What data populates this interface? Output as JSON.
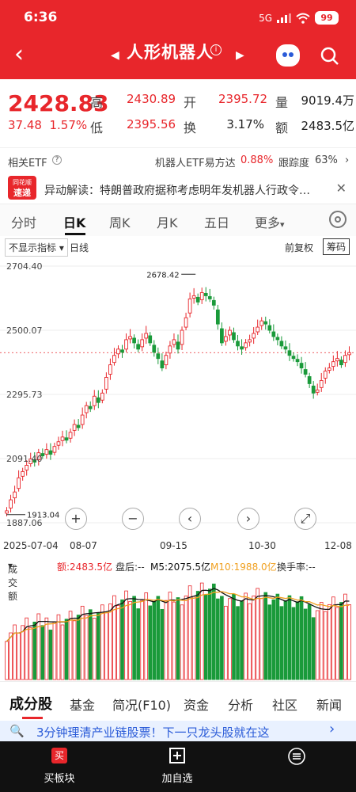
{
  "status": {
    "time": "6:36",
    "net": "5G",
    "battery": "99"
  },
  "title": {
    "name": "人形机器人"
  },
  "quote": {
    "price": "2428.83",
    "change": "37.48",
    "change_pct": "1.57%",
    "high_label": "高",
    "high": "2430.89",
    "open_label": "开",
    "open": "2395.72",
    "vol_label": "量",
    "vol": "9019.4万",
    "low_label": "低",
    "low": "2395.56",
    "turn_label": "换",
    "turn": "3.17%",
    "amt_label": "额",
    "amt": "2483.5亿"
  },
  "etf": {
    "label": "相关ETF",
    "product": "机器人ETF易方达",
    "product_chg": "0.88%",
    "track_label": "跟踪度",
    "track": "63%"
  },
  "news": {
    "logo_top": "同花顺",
    "logo_bottom": "速递",
    "text": "异动解读：特朗普政府据称考虑明年发机器人行政令…"
  },
  "tabs": {
    "t1": "分时",
    "t2": "日K",
    "t3": "周K",
    "t4": "月K",
    "t5": "五日",
    "t6": "更多"
  },
  "chart_bar": {
    "indicator": "不显示指标",
    "line": "日线",
    "adjust": "前复权",
    "chip": "筹码"
  },
  "chart_data": {
    "type": "candlestick",
    "y_ticks": [
      "2704.40",
      "2500.07",
      "2295.73",
      "2091.40",
      "1887.06"
    ],
    "max_label": "2678.42",
    "min_label": "1913.04",
    "dates": [
      "2025-07-04",
      "08-07",
      "09-15",
      "10-30",
      "12-08"
    ],
    "ylim": [
      1887.06,
      2704.4
    ],
    "last_close": 2428.83,
    "closes": [
      1925,
      1960,
      1985,
      2030,
      2050,
      2070,
      2090,
      2080,
      2110,
      2100,
      2120,
      2105,
      2130,
      2145,
      2160,
      2150,
      2175,
      2200,
      2190,
      2230,
      2260,
      2250,
      2290,
      2270,
      2300,
      2350,
      2390,
      2420,
      2440,
      2430,
      2470,
      2480,
      2460,
      2440,
      2470,
      2490,
      2460,
      2430,
      2410,
      2380,
      2420,
      2450,
      2470,
      2440,
      2500,
      2540,
      2600,
      2610,
      2590,
      2620,
      2610,
      2600,
      2580,
      2520,
      2460,
      2480,
      2500,
      2470,
      2450,
      2440,
      2460,
      2470,
      2490,
      2510,
      2530,
      2520,
      2500,
      2480,
      2470,
      2450,
      2440,
      2420,
      2410,
      2400,
      2380,
      2360,
      2330,
      2300,
      2310,
      2340,
      2370,
      2380,
      2400,
      2410,
      2390,
      2420,
      2428.83
    ]
  },
  "volume": {
    "label": "成交额",
    "amt": "额:2483.5亿",
    "after": "盘后:--",
    "m5": "M5:2075.5亿",
    "m10": "M10:1988.0亿",
    "turnover": "换手率:--"
  },
  "bottom_tabs": {
    "b1": "成分股",
    "b2": "基金",
    "b3": "简况(F10)",
    "b4": "资金",
    "b5": "分析",
    "b6": "社区",
    "b7": "新闻"
  },
  "banner": {
    "badge": "🔍",
    "text": "3分钟理清产业链股票！下一只龙头股就在这"
  },
  "footer": {
    "f1": "买板块",
    "f2": "加自选",
    "f3": ""
  },
  "colors": {
    "red": "#e8262b",
    "green": "#1a9a3a",
    "orange": "#f0a020"
  }
}
